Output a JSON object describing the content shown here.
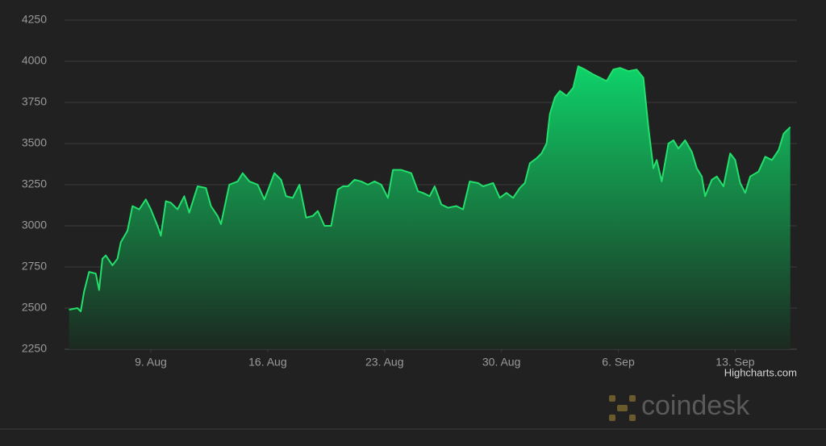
{
  "chart_data": {
    "type": "area",
    "color": "#22e06b",
    "grid": true,
    "credits": "Highcharts.com",
    "watermark": "coindesk",
    "xlim": [
      3.83,
      47.7
    ],
    "xticks": [
      {
        "value": 9,
        "label": "9. Aug"
      },
      {
        "value": 16,
        "label": "16. Aug"
      },
      {
        "value": 23,
        "label": "23. Aug"
      },
      {
        "value": 30,
        "label": "30. Aug"
      },
      {
        "value": 37,
        "label": "6. Sep"
      },
      {
        "value": 44,
        "label": "13. Sep"
      }
    ],
    "ylim": [
      2250,
      4250
    ],
    "yticks": [
      2250,
      2500,
      2750,
      3000,
      3250,
      3500,
      3750,
      4000,
      4250
    ],
    "x": [
      4.1,
      4.6,
      4.8,
      5.0,
      5.3,
      5.7,
      5.9,
      6.1,
      6.3,
      6.7,
      7.0,
      7.2,
      7.6,
      7.9,
      8.3,
      8.7,
      9.0,
      9.4,
      9.6,
      9.9,
      10.2,
      10.6,
      11.0,
      11.3,
      11.8,
      12.3,
      12.6,
      13.0,
      13.2,
      13.7,
      14.2,
      14.5,
      14.9,
      15.4,
      15.8,
      16.4,
      16.8,
      17.1,
      17.5,
      17.9,
      18.3,
      18.7,
      19.0,
      19.4,
      19.8,
      20.2,
      20.5,
      20.8,
      21.2,
      21.6,
      22.0,
      22.4,
      22.8,
      23.2,
      23.5,
      24.0,
      24.6,
      25.0,
      25.3,
      25.7,
      26.0,
      26.4,
      26.8,
      27.3,
      27.7,
      28.1,
      28.6,
      28.9,
      29.5,
      29.9,
      30.3,
      30.7,
      31.1,
      31.4,
      31.7,
      32.1,
      32.4,
      32.7,
      32.9,
      33.2,
      33.5,
      33.9,
      34.3,
      34.6,
      35.0,
      35.5,
      35.9,
      36.3,
      36.7,
      37.1,
      37.6,
      38.1,
      38.5,
      38.8,
      39.1,
      39.3,
      39.6,
      40.0,
      40.3,
      40.6,
      41.0,
      41.4,
      41.7,
      42.0,
      42.2,
      42.6,
      42.9,
      43.3,
      43.7,
      44.0,
      44.3,
      44.6,
      44.9,
      45.4,
      45.8,
      46.2,
      46.6,
      46.9,
      47.3
    ],
    "values": [
      2490,
      2500,
      2480,
      2600,
      2720,
      2710,
      2610,
      2800,
      2820,
      2760,
      2800,
      2900,
      2970,
      3120,
      3100,
      3160,
      3100,
      3000,
      2940,
      3150,
      3140,
      3100,
      3180,
      3080,
      3240,
      3230,
      3120,
      3060,
      3010,
      3250,
      3270,
      3320,
      3270,
      3250,
      3160,
      3320,
      3280,
      3180,
      3170,
      3250,
      3050,
      3060,
      3090,
      3000,
      3000,
      3220,
      3240,
      3240,
      3280,
      3270,
      3250,
      3270,
      3250,
      3170,
      3340,
      3340,
      3320,
      3210,
      3200,
      3180,
      3240,
      3130,
      3110,
      3120,
      3100,
      3270,
      3260,
      3240,
      3260,
      3170,
      3200,
      3170,
      3230,
      3260,
      3380,
      3410,
      3440,
      3500,
      3680,
      3780,
      3820,
      3790,
      3840,
      3970,
      3950,
      3920,
      3900,
      3880,
      3950,
      3960,
      3940,
      3950,
      3900,
      3600,
      3350,
      3400,
      3270,
      3500,
      3520,
      3470,
      3520,
      3450,
      3350,
      3300,
      3180,
      3280,
      3300,
      3240,
      3440,
      3400,
      3260,
      3200,
      3300,
      3330,
      3420,
      3400,
      3460,
      3560,
      3600
    ]
  }
}
